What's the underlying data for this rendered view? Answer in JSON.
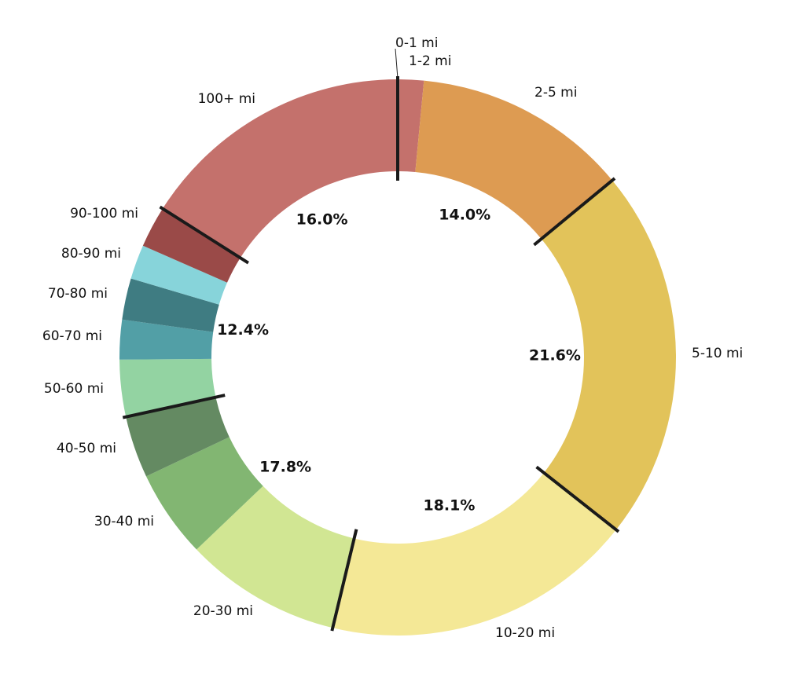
{
  "chart_data": {
    "type": "donut",
    "categories": [
      "0-1 mi",
      "1-2 mi",
      "2-5 mi",
      "5-10 mi",
      "10-20 mi",
      "20-30 mi",
      "30-40 mi",
      "40-50 mi",
      "50-60 mi",
      "60-70 mi",
      "70-80 mi",
      "80-90 mi",
      "90-100 mi",
      "100+ mi"
    ],
    "values": [
      0.1,
      1.4,
      12.5,
      21.6,
      18.1,
      9.1,
      5.1,
      3.6,
      3.3,
      2.3,
      2.4,
      2.0,
      2.4,
      16.0
    ],
    "colors": [
      "#c4716c",
      "#c4716c",
      "#dd9b52",
      "#e2c35a",
      "#f4e896",
      "#d1e693",
      "#82b672",
      "#648a62",
      "#93d3a2",
      "#529fa6",
      "#3f7c82",
      "#87d4da",
      "#9a4a48",
      "#c4716c"
    ],
    "groups": {
      "values": [
        14.0,
        21.6,
        18.1,
        17.8,
        12.4,
        16.0
      ],
      "value_labels": [
        "14.0%",
        "21.6%",
        "18.1%",
        "17.8%",
        "12.4%",
        "16.0%"
      ]
    }
  }
}
